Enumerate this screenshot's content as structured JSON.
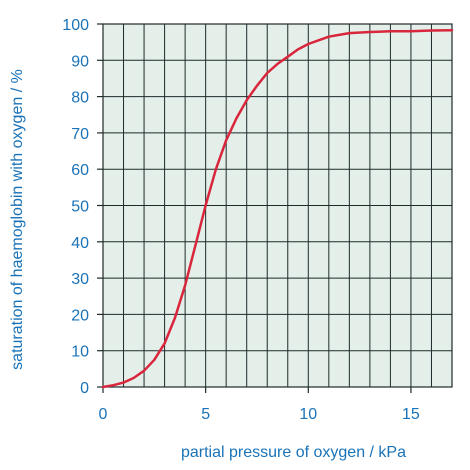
{
  "colors": {
    "plot_bg": "#e4efea",
    "grid": "#1e2a2a",
    "curve": "#d9263c",
    "text": "#1a73b8"
  },
  "chart_data": {
    "type": "line",
    "title": "",
    "xlabel": "partial pressure of oxygen / kPa",
    "ylabel": "saturation of haemoglobin with oxygen / %",
    "xlim": [
      0,
      17
    ],
    "ylim": [
      0,
      100
    ],
    "x_ticks": [
      0,
      5,
      10,
      15
    ],
    "y_ticks": [
      0,
      10,
      20,
      30,
      40,
      50,
      60,
      70,
      80,
      90,
      100
    ],
    "grid": true,
    "series": [
      {
        "x": [
          0,
          0.5,
          1,
          1.5,
          2,
          2.5,
          3,
          3.5,
          4,
          4.5,
          5,
          5.5,
          6,
          6.5,
          7,
          7.5,
          8,
          8.5,
          9,
          9.5,
          10,
          10.5,
          11,
          11.5,
          12,
          13,
          14,
          15,
          16,
          17
        ],
        "y": [
          0,
          0.5,
          1.2,
          2.5,
          4.5,
          7.5,
          12,
          19,
          28,
          39,
          50,
          60,
          68,
          74,
          79,
          83,
          86.5,
          89,
          91,
          93,
          94.5,
          95.5,
          96.5,
          97,
          97.5,
          97.8,
          98,
          98,
          98.2,
          98.3
        ]
      }
    ]
  }
}
